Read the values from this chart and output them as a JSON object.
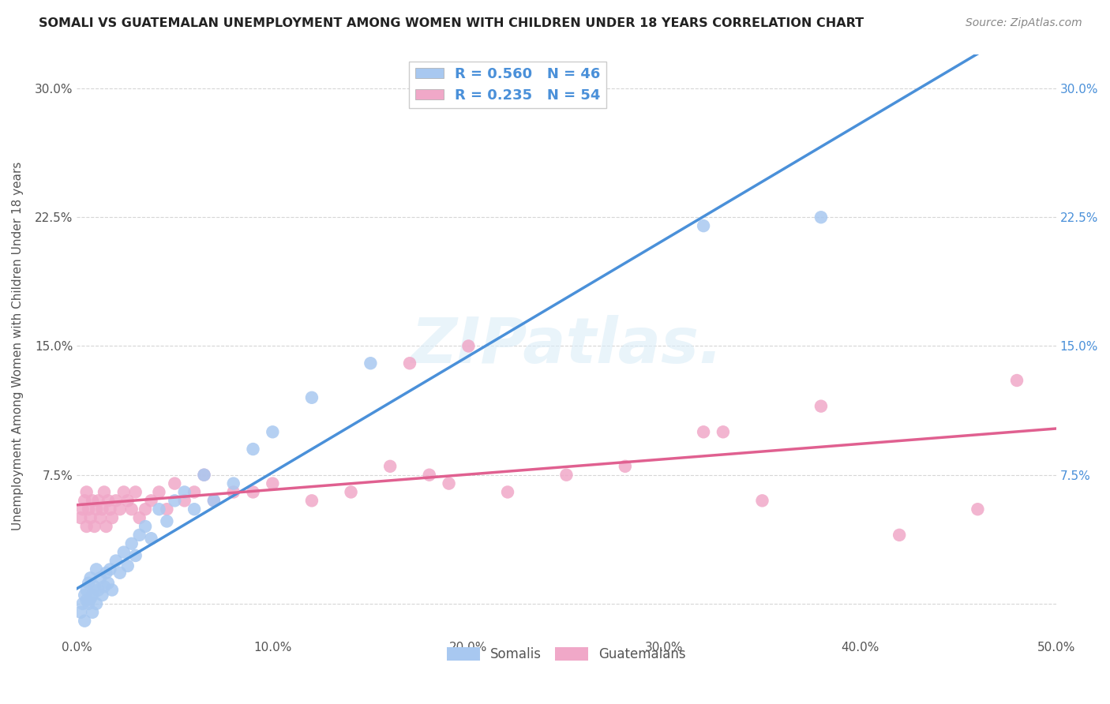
{
  "title": "SOMALI VS GUATEMALAN UNEMPLOYMENT AMONG WOMEN WITH CHILDREN UNDER 18 YEARS CORRELATION CHART",
  "source": "Source: ZipAtlas.com",
  "ylabel": "Unemployment Among Women with Children Under 18 years",
  "x_min": 0.0,
  "x_max": 0.5,
  "y_min": -0.02,
  "y_max": 0.32,
  "x_ticks": [
    0.0,
    0.1,
    0.2,
    0.3,
    0.4,
    0.5
  ],
  "x_tick_labels": [
    "0.0%",
    "10.0%",
    "20.0%",
    "30.0%",
    "40.0%",
    "50.0%"
  ],
  "y_ticks": [
    0.0,
    0.075,
    0.15,
    0.225,
    0.3
  ],
  "y_tick_labels": [
    "",
    "7.5%",
    "15.0%",
    "22.5%",
    "30.0%"
  ],
  "y_ticks_right": [
    0.075,
    0.15,
    0.225,
    0.3
  ],
  "y_tick_labels_right": [
    "7.5%",
    "15.0%",
    "22.5%",
    "30.0%"
  ],
  "somali_R": 0.56,
  "somali_N": 46,
  "guatemalan_R": 0.235,
  "guatemalan_N": 54,
  "somali_color": "#a8c8f0",
  "guatemalan_color": "#f0a8c8",
  "somali_line_color": "#4a90d9",
  "guatemalan_line_color": "#e06090",
  "legend_somali_label": "Somalis",
  "legend_guatemalan_label": "Guatemalans",
  "background_color": "#ffffff",
  "grid_color": "#cccccc",
  "watermark_text": "ZIPatlas.",
  "somali_x": [
    0.002,
    0.003,
    0.004,
    0.004,
    0.005,
    0.005,
    0.006,
    0.006,
    0.007,
    0.007,
    0.008,
    0.008,
    0.009,
    0.01,
    0.01,
    0.011,
    0.012,
    0.013,
    0.014,
    0.015,
    0.016,
    0.017,
    0.018,
    0.02,
    0.022,
    0.024,
    0.026,
    0.028,
    0.03,
    0.032,
    0.035,
    0.038,
    0.042,
    0.046,
    0.05,
    0.055,
    0.06,
    0.065,
    0.07,
    0.08,
    0.09,
    0.1,
    0.12,
    0.15,
    0.32,
    0.38
  ],
  "somali_y": [
    -0.005,
    0.0,
    0.005,
    -0.01,
    0.002,
    0.008,
    0.0,
    0.012,
    0.003,
    0.015,
    0.005,
    -0.005,
    0.01,
    0.0,
    0.02,
    0.008,
    0.015,
    0.005,
    0.01,
    0.018,
    0.012,
    0.02,
    0.008,
    0.025,
    0.018,
    0.03,
    0.022,
    0.035,
    0.028,
    0.04,
    0.045,
    0.038,
    0.055,
    0.048,
    0.06,
    0.065,
    0.055,
    0.075,
    0.06,
    0.07,
    0.09,
    0.1,
    0.12,
    0.14,
    0.22,
    0.225
  ],
  "guatemalan_x": [
    0.002,
    0.003,
    0.004,
    0.005,
    0.005,
    0.006,
    0.007,
    0.008,
    0.009,
    0.01,
    0.011,
    0.012,
    0.013,
    0.014,
    0.015,
    0.016,
    0.017,
    0.018,
    0.02,
    0.022,
    0.024,
    0.026,
    0.028,
    0.03,
    0.032,
    0.035,
    0.038,
    0.042,
    0.046,
    0.05,
    0.055,
    0.06,
    0.065,
    0.07,
    0.08,
    0.09,
    0.1,
    0.12,
    0.14,
    0.16,
    0.18,
    0.2,
    0.22,
    0.25,
    0.28,
    0.32,
    0.35,
    0.38,
    0.42,
    0.46,
    0.17,
    0.19,
    0.33,
    0.48
  ],
  "guatemalan_y": [
    0.05,
    0.055,
    0.06,
    0.045,
    0.065,
    0.055,
    0.05,
    0.06,
    0.045,
    0.055,
    0.06,
    0.05,
    0.055,
    0.065,
    0.045,
    0.06,
    0.055,
    0.05,
    0.06,
    0.055,
    0.065,
    0.06,
    0.055,
    0.065,
    0.05,
    0.055,
    0.06,
    0.065,
    0.055,
    0.07,
    0.06,
    0.065,
    0.075,
    0.06,
    0.065,
    0.065,
    0.07,
    0.06,
    0.065,
    0.08,
    0.075,
    0.15,
    0.065,
    0.075,
    0.08,
    0.1,
    0.06,
    0.115,
    0.04,
    0.055,
    0.14,
    0.07,
    0.1,
    0.13
  ]
}
